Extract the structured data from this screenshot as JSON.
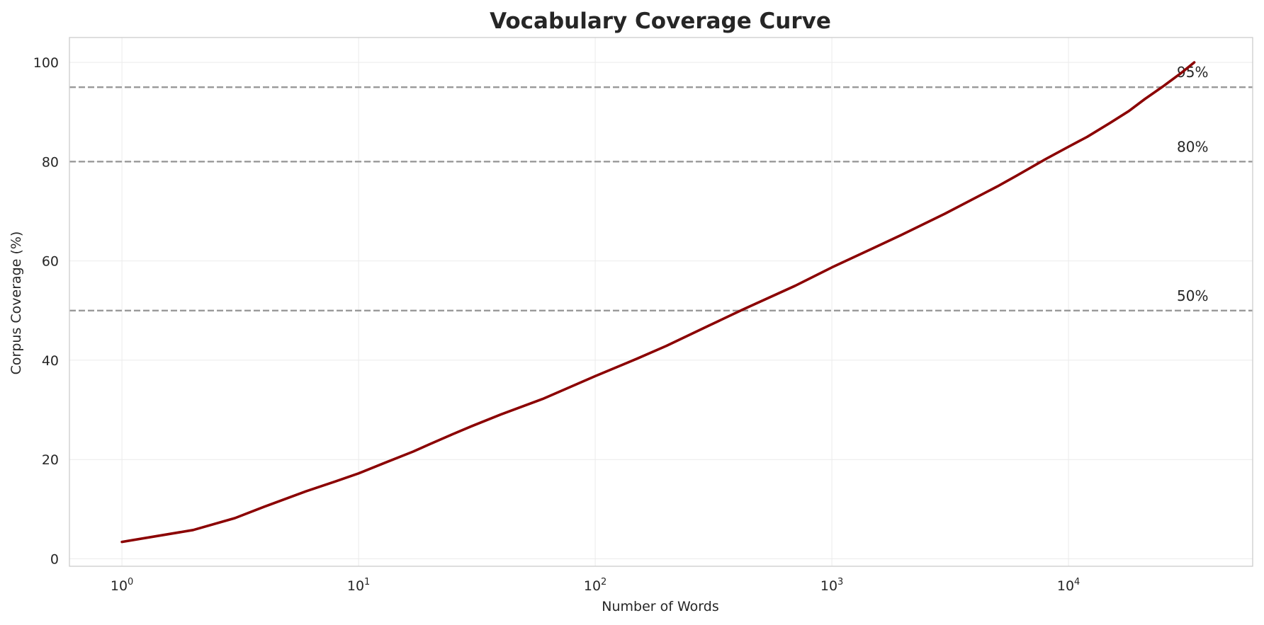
{
  "chart_data": {
    "type": "line",
    "title": "Vocabulary Coverage Curve",
    "xlabel": "Number of Words",
    "ylabel": "Corpus Coverage (%)",
    "xscale": "log",
    "xlim": [
      0.6,
      60000
    ],
    "ylim": [
      -1.5,
      105
    ],
    "grid": true,
    "x_ticks": [
      {
        "value": 1,
        "base": "10",
        "exp": "0"
      },
      {
        "value": 10,
        "base": "10",
        "exp": "1"
      },
      {
        "value": 100,
        "base": "10",
        "exp": "2"
      },
      {
        "value": 1000,
        "base": "10",
        "exp": "3"
      },
      {
        "value": 10000,
        "base": "10",
        "exp": "4"
      }
    ],
    "y_ticks": [
      0,
      20,
      40,
      60,
      80,
      100
    ],
    "colors": {
      "line": "#8b0000",
      "reference": "#999999",
      "grid": "#ebebeb",
      "frame": "#cccccc"
    },
    "reference_lines": [
      {
        "y": 95,
        "label": "95%"
      },
      {
        "y": 80,
        "label": "80%"
      },
      {
        "y": 50,
        "label": "50%"
      }
    ],
    "series": [
      {
        "x": [
          1,
          2,
          3,
          4,
          6,
          8,
          10,
          13,
          17,
          20,
          25,
          30,
          40,
          60,
          100,
          150,
          200,
          300,
          420,
          700,
          1000,
          1500,
          2000,
          3000,
          5000,
          6000,
          8000,
          10000,
          12000,
          15000,
          18000,
          21000,
          25000,
          30000,
          34000
        ],
        "y": [
          3.4,
          5.8,
          8.2,
          10.5,
          13.6,
          15.6,
          17.2,
          19.4,
          21.6,
          23.1,
          25.1,
          26.7,
          29.1,
          32.2,
          36.8,
          40.3,
          42.9,
          46.9,
          50.2,
          55.0,
          58.7,
          62.6,
          65.4,
          69.5,
          75.0,
          77.1,
          80.5,
          83.0,
          85.0,
          87.8,
          90.2,
          92.6,
          95.1,
          97.9,
          100.0
        ]
      }
    ]
  }
}
